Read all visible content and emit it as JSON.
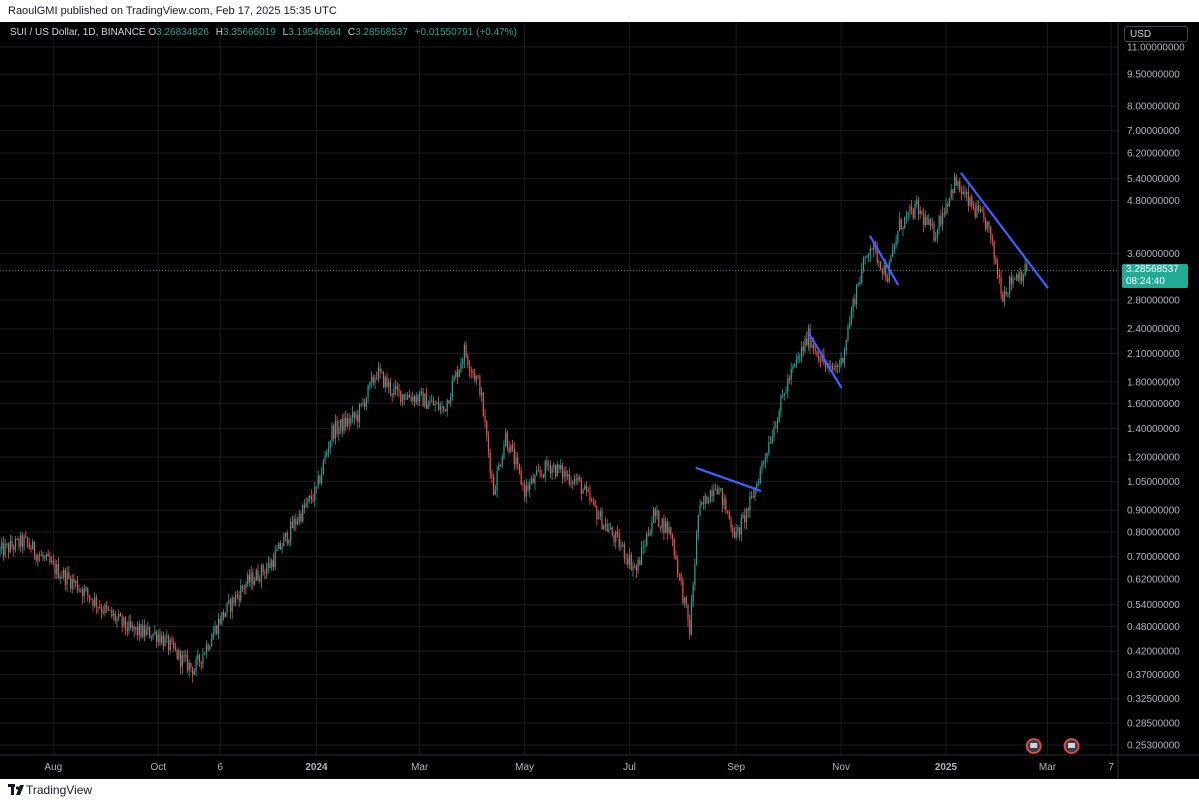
{
  "top_bar": {
    "publisher": "RaoulGMI published on TradingView.com, Feb 17, 2025 15:35 UTC"
  },
  "header": {
    "symbol": "SUI / US Dollar, 1D, BINANCE",
    "open_label": "O",
    "open_value": "3.26834826",
    "high_label": "H",
    "high_value": "3.35666019",
    "low_label": "L",
    "low_value": "3.19546664",
    "close_label": "C",
    "close_value": "3.28568537",
    "change": "+0.01550791 (+0.47%)"
  },
  "currency": "USD",
  "last_price": {
    "price": "3.28568537",
    "countdown": "08:24:40"
  },
  "footer": {
    "brand": "TradingView"
  },
  "colors": {
    "up": "#26a69a",
    "down": "#ef5350",
    "trendline": "#3f5fff",
    "background": "#000000",
    "price_tag": "#22ab94"
  },
  "chart_data": {
    "type": "candlestick",
    "scale": "log",
    "y_ticks": [
      11.0,
      9.5,
      8.0,
      7.0,
      6.2,
      5.4,
      4.8,
      3.6,
      3.28568537,
      2.8,
      2.4,
      2.1,
      1.8,
      1.6,
      1.4,
      1.2,
      1.05,
      0.9,
      0.8,
      0.7,
      0.62,
      0.54,
      0.48,
      0.42,
      0.37,
      0.325,
      0.285,
      0.253
    ],
    "y_tick_labels": [
      "11.00000000",
      "9.50000000",
      "8.00000000",
      "7.00000000",
      "6.20000000",
      "5.40000000",
      "4.80000000",
      "3.60000000",
      "",
      "2.80000000",
      "2.40000000",
      "2.10000000",
      "1.80000000",
      "1.60000000",
      "1.40000000",
      "1.20000000",
      "1.05000000",
      "0.90000000",
      "0.80000000",
      "0.70000000",
      "0.62000000",
      "0.54000000",
      "0.48000000",
      "0.42000000",
      "0.37000000",
      "0.32500000",
      "0.28500000",
      "0.25300000"
    ],
    "x_ticks": [
      {
        "label": "Aug",
        "date": "2023-08-01"
      },
      {
        "label": "Oct",
        "date": "2023-10-01"
      },
      {
        "label": "6",
        "date": "2023-11-06"
      },
      {
        "label": "2024",
        "date": "2024-01-01"
      },
      {
        "label": "Mar",
        "date": "2024-03-01"
      },
      {
        "label": "May",
        "date": "2024-05-01"
      },
      {
        "label": "Jul",
        "date": "2024-07-01"
      },
      {
        "label": "Sep",
        "date": "2024-09-01"
      },
      {
        "label": "Nov",
        "date": "2024-11-01"
      },
      {
        "label": "2025",
        "date": "2025-01-01"
      },
      {
        "label": "Mar",
        "date": "2025-03-01"
      },
      {
        "label": "7",
        "date": "2025-04-07"
      }
    ],
    "price_path": [
      {
        "date": "2023-07-01",
        "price": 0.72
      },
      {
        "date": "2023-07-15",
        "price": 0.76
      },
      {
        "date": "2023-08-01",
        "price": 0.66
      },
      {
        "date": "2023-08-15",
        "price": 0.6
      },
      {
        "date": "2023-09-01",
        "price": 0.52
      },
      {
        "date": "2023-09-15",
        "price": 0.47
      },
      {
        "date": "2023-10-01",
        "price": 0.46
      },
      {
        "date": "2023-10-15",
        "price": 0.4
      },
      {
        "date": "2023-10-22",
        "price": 0.38
      },
      {
        "date": "2023-11-06",
        "price": 0.5
      },
      {
        "date": "2023-11-20",
        "price": 0.6
      },
      {
        "date": "2023-12-05",
        "price": 0.67
      },
      {
        "date": "2023-12-20",
        "price": 0.85
      },
      {
        "date": "2024-01-01",
        "price": 1.0
      },
      {
        "date": "2024-01-10",
        "price": 1.38
      },
      {
        "date": "2024-01-25",
        "price": 1.5
      },
      {
        "date": "2024-02-05",
        "price": 1.9
      },
      {
        "date": "2024-02-15",
        "price": 1.7
      },
      {
        "date": "2024-03-01",
        "price": 1.65
      },
      {
        "date": "2024-03-15",
        "price": 1.55
      },
      {
        "date": "2024-03-27",
        "price": 2.13
      },
      {
        "date": "2024-04-05",
        "price": 1.75
      },
      {
        "date": "2024-04-13",
        "price": 1.0
      },
      {
        "date": "2024-04-20",
        "price": 1.35
      },
      {
        "date": "2024-05-01",
        "price": 1.0
      },
      {
        "date": "2024-05-15",
        "price": 1.15
      },
      {
        "date": "2024-06-01",
        "price": 1.05
      },
      {
        "date": "2024-06-15",
        "price": 0.85
      },
      {
        "date": "2024-06-25",
        "price": 0.75
      },
      {
        "date": "2024-07-05",
        "price": 0.65
      },
      {
        "date": "2024-07-15",
        "price": 0.88
      },
      {
        "date": "2024-07-25",
        "price": 0.8
      },
      {
        "date": "2024-08-05",
        "price": 0.47
      },
      {
        "date": "2024-08-10",
        "price": 0.88
      },
      {
        "date": "2024-08-20",
        "price": 1.05
      },
      {
        "date": "2024-09-01",
        "price": 0.78
      },
      {
        "date": "2024-09-10",
        "price": 0.95
      },
      {
        "date": "2024-09-20",
        "price": 1.3
      },
      {
        "date": "2024-10-01",
        "price": 1.8
      },
      {
        "date": "2024-10-13",
        "price": 2.3
      },
      {
        "date": "2024-10-25",
        "price": 1.9
      },
      {
        "date": "2024-11-01",
        "price": 2.0
      },
      {
        "date": "2024-11-10",
        "price": 3.0
      },
      {
        "date": "2024-11-18",
        "price": 3.8
      },
      {
        "date": "2024-11-28",
        "price": 3.2
      },
      {
        "date": "2024-12-05",
        "price": 4.2
      },
      {
        "date": "2024-12-15",
        "price": 4.6
      },
      {
        "date": "2024-12-25",
        "price": 4.0
      },
      {
        "date": "2025-01-06",
        "price": 5.3
      },
      {
        "date": "2025-01-15",
        "price": 4.7
      },
      {
        "date": "2025-01-25",
        "price": 4.2
      },
      {
        "date": "2025-02-03",
        "price": 2.9
      },
      {
        "date": "2025-02-10",
        "price": 3.2
      },
      {
        "date": "2025-02-17",
        "price": 3.28568537
      }
    ],
    "trendlines": [
      {
        "from": {
          "date": "2024-08-09",
          "price": 1.13
        },
        "to": {
          "date": "2024-09-15",
          "price": 1.0
        }
      },
      {
        "from": {
          "date": "2024-10-13",
          "price": 2.35
        },
        "to": {
          "date": "2024-11-01",
          "price": 1.75
        }
      },
      {
        "from": {
          "date": "2024-11-18",
          "price": 3.95
        },
        "to": {
          "date": "2024-12-04",
          "price": 3.05
        }
      },
      {
        "from": {
          "date": "2025-01-10",
          "price": 5.55
        },
        "to": {
          "date": "2025-03-01",
          "price": 3.0
        }
      }
    ],
    "last_price": 3.28568537,
    "grid": true
  }
}
